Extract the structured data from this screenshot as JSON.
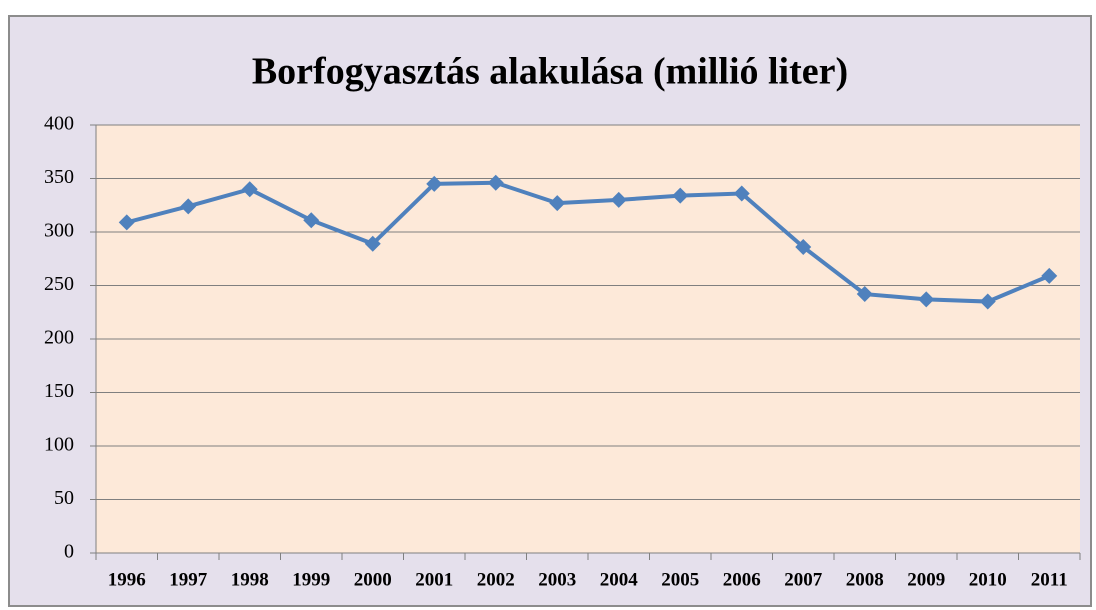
{
  "chart_data": {
    "type": "line",
    "title": "Borfogyasztás alakulása (millió liter)",
    "categories": [
      "1996",
      "1997",
      "1998",
      "1999",
      "2000",
      "2001",
      "2002",
      "2003",
      "2004",
      "2005",
      "2006",
      "2007",
      "2008",
      "2009",
      "2010",
      "2011"
    ],
    "series": [
      {
        "name": "Borfogyasztás",
        "color": "#4f81bd",
        "values": [
          309,
          324,
          340,
          311,
          289,
          345,
          346,
          327,
          330,
          334,
          336,
          286,
          242,
          237,
          235,
          259
        ]
      }
    ],
    "ylim": [
      0,
      400
    ],
    "yticks": [
      0,
      50,
      100,
      150,
      200,
      250,
      300,
      350,
      400
    ],
    "grid": true
  }
}
